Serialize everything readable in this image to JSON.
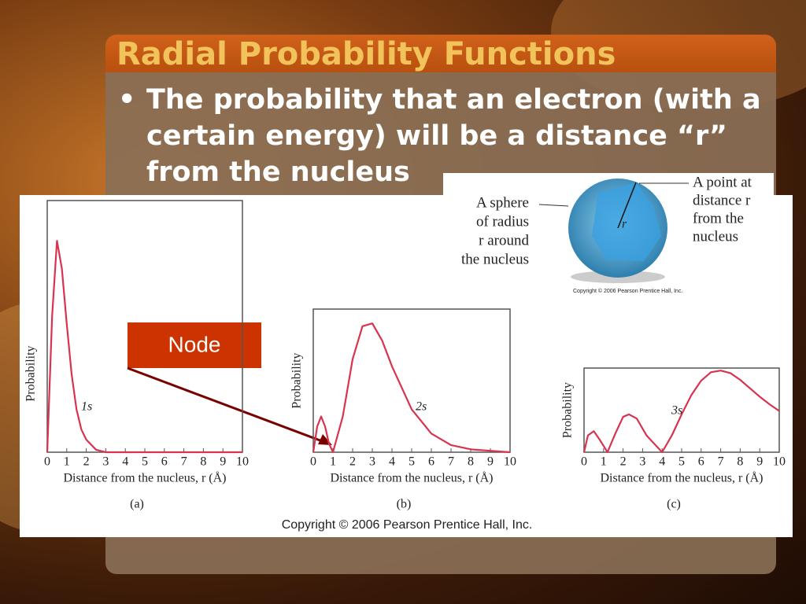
{
  "title": "Radial Probability Functions",
  "bullet": "The probability that an electron (with a certain energy) will be a distance “r” from the nucleus",
  "callout": "Node",
  "copyright": "Copyright © 2006 Pearson Prentice Hall, Inc.",
  "sphere": {
    "left_label": [
      "A sphere",
      "of radius",
      "r around",
      "the nucleus"
    ],
    "right_label": [
      "A point at",
      "distance  r",
      "from the",
      "nucleus"
    ],
    "r_label": "r",
    "copyright": "Copyright © 2006 Pearson Prentice Hall, Inc."
  },
  "chart_data": [
    {
      "type": "line",
      "panel": "(a)",
      "xlabel": "Distance from the nucleus, r (Å)",
      "ylabel": "Probability",
      "xlim": [
        0,
        10
      ],
      "ylim": [
        0,
        1
      ],
      "xticks": [
        0,
        1,
        2,
        3,
        4,
        5,
        6,
        7,
        8,
        9,
        10
      ],
      "x": [
        0,
        0.25,
        0.5,
        0.75,
        1,
        1.25,
        1.5,
        1.75,
        2,
        2.5,
        3,
        4,
        5,
        6,
        7,
        8,
        9,
        10
      ],
      "series": [
        {
          "name": "1s",
          "color": "#d8334f",
          "values": [
            0,
            0.54,
            0.84,
            0.73,
            0.51,
            0.31,
            0.17,
            0.09,
            0.05,
            0.01,
            0,
            0,
            0,
            0,
            0,
            0,
            0,
            0
          ]
        }
      ]
    },
    {
      "type": "line",
      "panel": "(b)",
      "xlabel": "Distance from the nucleus, r (Å)",
      "ylabel": "Probability",
      "xlim": [
        0,
        10
      ],
      "ylim": [
        0,
        1
      ],
      "xticks": [
        0,
        1,
        2,
        3,
        4,
        5,
        6,
        7,
        8,
        9,
        10
      ],
      "x": [
        0,
        0.2,
        0.4,
        0.6,
        0.8,
        1,
        1.5,
        2,
        2.5,
        3,
        3.5,
        4,
        5,
        6,
        7,
        8,
        9,
        10
      ],
      "series": [
        {
          "name": "2s",
          "color": "#d8334f",
          "values": [
            0,
            0.18,
            0.25,
            0.18,
            0.06,
            0,
            0.25,
            0.65,
            0.88,
            0.9,
            0.78,
            0.6,
            0.3,
            0.13,
            0.05,
            0.02,
            0.01,
            0
          ]
        }
      ]
    },
    {
      "type": "line",
      "panel": "(c)",
      "xlabel": "Distance from the nucleus, r (Å)",
      "ylabel": "Probability",
      "xlim": [
        0,
        10
      ],
      "ylim": [
        0,
        1
      ],
      "xticks": [
        0,
        1,
        2,
        3,
        4,
        5,
        6,
        7,
        8,
        9,
        10
      ],
      "x": [
        0,
        0.2,
        0.5,
        0.8,
        1.2,
        1.6,
        2,
        2.3,
        2.7,
        3.2,
        4,
        4.5,
        5,
        5.5,
        6,
        6.5,
        7,
        7.5,
        8,
        8.5,
        9,
        9.5,
        10
      ],
      "series": [
        {
          "name": "3s",
          "color": "#d8334f",
          "values": [
            0,
            0.2,
            0.25,
            0.15,
            0,
            0.22,
            0.42,
            0.45,
            0.4,
            0.2,
            0,
            0.2,
            0.45,
            0.68,
            0.85,
            0.95,
            0.97,
            0.94,
            0.86,
            0.76,
            0.66,
            0.57,
            0.49
          ]
        }
      ]
    }
  ]
}
